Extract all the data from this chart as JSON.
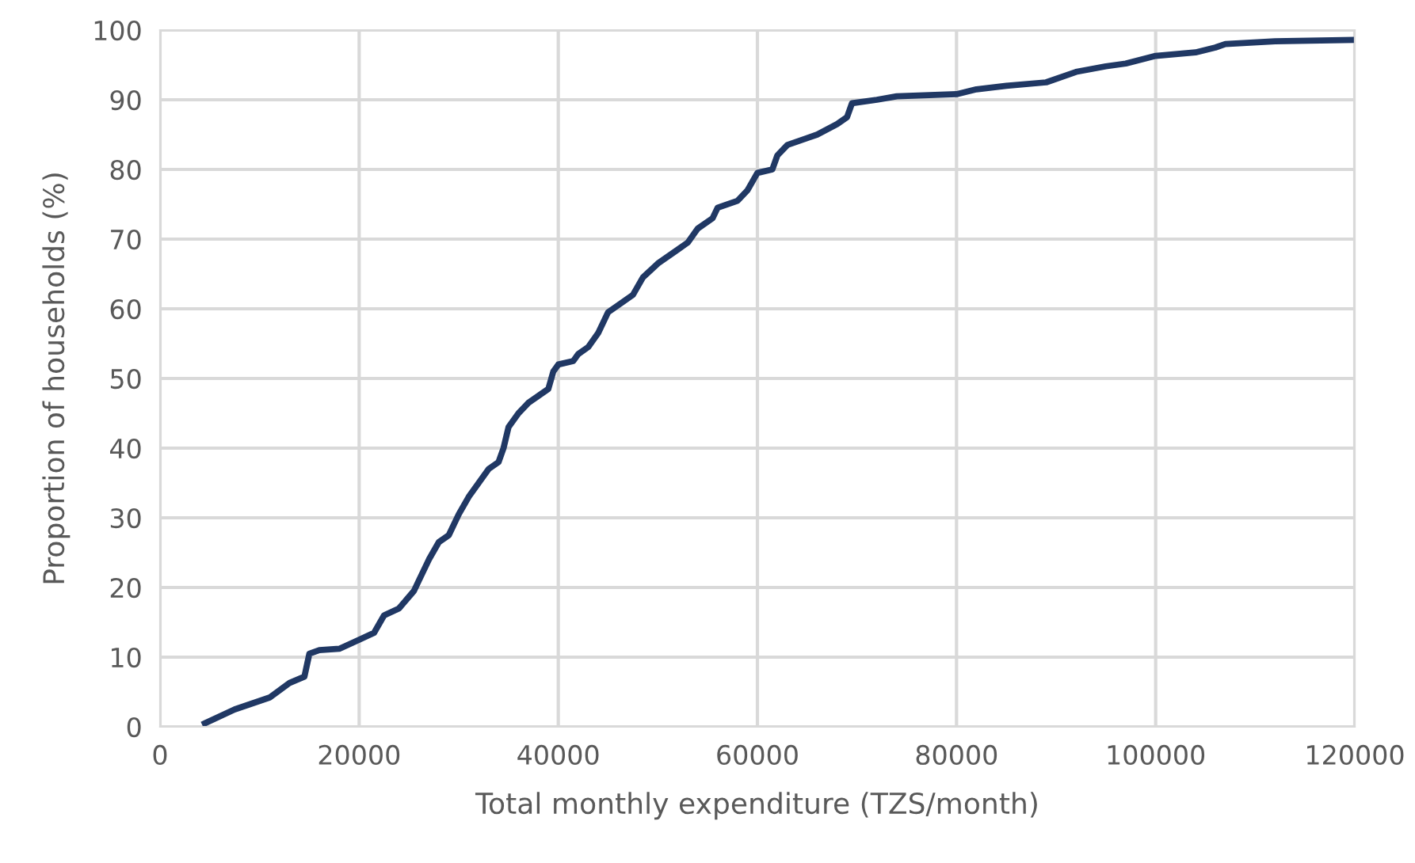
{
  "chart_data": {
    "type": "line",
    "xlabel": "Total monthly expenditure (TZS/month)",
    "ylabel": "Proportion of households (%)",
    "xlim": [
      0,
      120000
    ],
    "xticks": [
      0,
      20000,
      40000,
      60000,
      80000,
      100000,
      120000
    ],
    "ylim": [
      0,
      100
    ],
    "yticks": [
      0,
      10,
      20,
      30,
      40,
      50,
      60,
      70,
      80,
      90,
      100
    ],
    "grid": true,
    "marker": "none",
    "line_style": "solid",
    "series": [
      {
        "color": "#203864",
        "x": [
          4500,
          7500,
          11000,
          13000,
          14500,
          15000,
          16000,
          18000,
          20000,
          21500,
          22500,
          24000,
          25500,
          26000,
          27000,
          28000,
          29000,
          30000,
          31000,
          32000,
          33000,
          34000,
          34500,
          35000,
          36000,
          37000,
          38000,
          39000,
          39500,
          40000,
          41500,
          42000,
          43000,
          44000,
          45000,
          46000,
          47500,
          48500,
          50000,
          52000,
          53000,
          54000,
          55500,
          56000,
          58000,
          59000,
          60000,
          61500,
          62000,
          63000,
          65000,
          66000,
          68000,
          69000,
          69500,
          72000,
          74000,
          80000,
          82000,
          85000,
          89000,
          92000,
          95000,
          97000,
          100000,
          104000,
          106000,
          107000,
          112000,
          120000
        ],
        "values": [
          0.5,
          2.5,
          4.2,
          6.3,
          7.2,
          10.5,
          11,
          11.2,
          12.5,
          13.5,
          16,
          17,
          19.5,
          21,
          24,
          26.5,
          27.5,
          30.5,
          33,
          35,
          37,
          38,
          40,
          43,
          45,
          46.5,
          47.5,
          48.5,
          51,
          52,
          52.5,
          53.5,
          54.5,
          56.5,
          59.5,
          60.5,
          62,
          64.5,
          66.5,
          68.5,
          69.5,
          71.5,
          73,
          74.5,
          75.5,
          77,
          79.5,
          80,
          82,
          83.5,
          84.5,
          85,
          86.5,
          87.5,
          89.5,
          90,
          90.5,
          90.8,
          91.5,
          92,
          92.5,
          94,
          94.8,
          95.2,
          96.3,
          96.8,
          97.5,
          98,
          98.4,
          98.6
        ]
      }
    ]
  }
}
